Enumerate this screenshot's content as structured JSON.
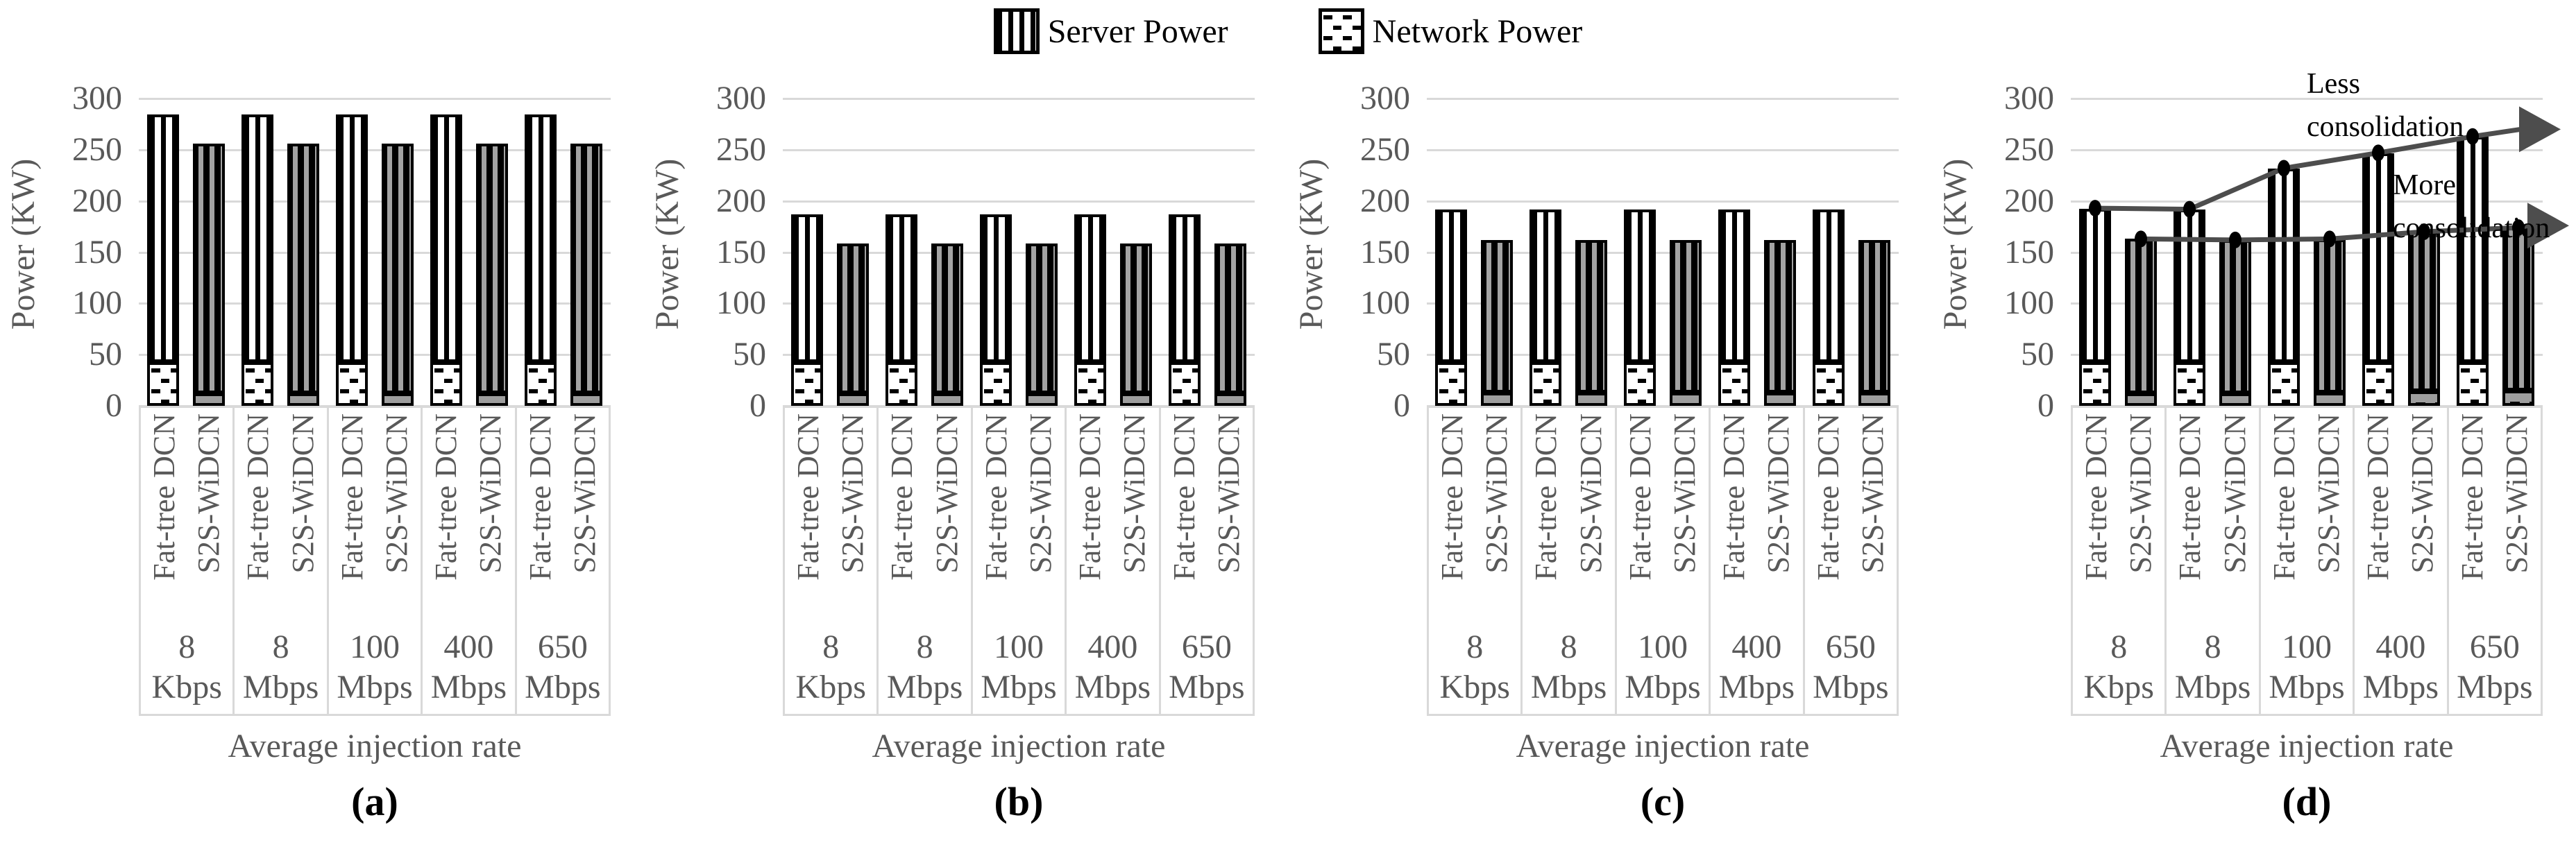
{
  "colors": {
    "grid": "#d9d9d9",
    "axis_text": "#595959",
    "bar_border": "#000000",
    "fat_tree_fill": "#ffffff",
    "fat_tree_stripe": "#000000",
    "s2s_background": "#000000",
    "s2s_stripe": "#a3a3a3",
    "s2s_network_fill": "#9e9e9e",
    "trend_line": "#4d4d4d",
    "marker": "#000000"
  },
  "legend": {
    "items": [
      {
        "label": "Server Power",
        "swatch": "server-power-pattern"
      },
      {
        "label": "Network Power",
        "swatch": "network-power-pattern"
      }
    ]
  },
  "x_axis": {
    "title": "Average injection rate",
    "categories_two_line": [
      [
        "8",
        "Kbps"
      ],
      [
        "8",
        "Mbps"
      ],
      [
        "100",
        "Mbps"
      ],
      [
        "400",
        "Mbps"
      ],
      [
        "650",
        "Mbps"
      ]
    ]
  },
  "chart_data": [
    {
      "type": "bar",
      "panel_label": "(a)",
      "stacked": true,
      "grid": true,
      "legend_entries": [
        "Server Power",
        "Network Power"
      ],
      "categories": [
        "8 Kbps",
        "8 Mbps",
        "100 Mbps",
        "400 Mbps",
        "650 Mbps"
      ],
      "ylabel": "Power (KW)",
      "xlabel": "Average injection rate",
      "ylim": [
        0,
        300
      ],
      "yticks": [
        0,
        50,
        100,
        150,
        200,
        250,
        300
      ],
      "series": [
        {
          "name": "Fat-tree DCN",
          "stack": {
            "Network Power": [
              43,
              43,
              43,
              43,
              43
            ],
            "Server Power": [
              242,
              242,
              242,
              242,
              242
            ]
          },
          "totals": [
            285,
            285,
            285,
            285,
            285
          ]
        },
        {
          "name": "S2S-WiDCN",
          "stack": {
            "Network Power": [
              12,
              12,
              12,
              12,
              12
            ],
            "Server Power": [
              244,
              244,
              244,
              244,
              244
            ]
          },
          "totals": [
            256,
            256,
            256,
            256,
            256
          ]
        }
      ]
    },
    {
      "type": "bar",
      "panel_label": "(b)",
      "stacked": true,
      "grid": true,
      "legend_entries": [
        "Server Power",
        "Network Power"
      ],
      "categories": [
        "8 Kbps",
        "8 Mbps",
        "100 Mbps",
        "400 Mbps",
        "650 Mbps"
      ],
      "ylabel": "Power (KW)",
      "xlabel": "Average injection rate",
      "ylim": [
        0,
        300
      ],
      "yticks": [
        0,
        50,
        100,
        150,
        200,
        250,
        300
      ],
      "series": [
        {
          "name": "Fat-tree DCN",
          "stack": {
            "Network Power": [
              43,
              43,
              43,
              43,
              43
            ],
            "Server Power": [
              144,
              144,
              144,
              144,
              144
            ]
          },
          "totals": [
            187,
            187,
            187,
            187,
            187
          ]
        },
        {
          "name": "S2S-WiDCN",
          "stack": {
            "Network Power": [
              12,
              12,
              12,
              12,
              12
            ],
            "Server Power": [
              146,
              146,
              146,
              146,
              146
            ]
          },
          "totals": [
            158,
            158,
            158,
            158,
            158
          ]
        }
      ]
    },
    {
      "type": "bar",
      "panel_label": "(c)",
      "stacked": true,
      "grid": true,
      "legend_entries": [
        "Server Power",
        "Network Power"
      ],
      "categories": [
        "8 Kbps",
        "8 Mbps",
        "100 Mbps",
        "400 Mbps",
        "650 Mbps"
      ],
      "ylabel": "Power (KW)",
      "xlabel": "Average injection rate",
      "ylim": [
        0,
        300
      ],
      "yticks": [
        0,
        50,
        100,
        150,
        200,
        250,
        300
      ],
      "series": [
        {
          "name": "Fat-tree DCN",
          "stack": {
            "Network Power": [
              43,
              43,
              43,
              43,
              43
            ],
            "Server Power": [
              149,
              149,
              149,
              149,
              149
            ]
          },
          "totals": [
            192,
            192,
            192,
            192,
            192
          ]
        },
        {
          "name": "S2S-WiDCN",
          "stack": {
            "Network Power": [
              13,
              13,
              13,
              13,
              13
            ],
            "Server Power": [
              149,
              149,
              149,
              149,
              149
            ]
          },
          "totals": [
            162,
            162,
            162,
            162,
            162
          ]
        }
      ]
    },
    {
      "type": "bar",
      "panel_label": "(d)",
      "stacked": true,
      "grid": true,
      "legend_entries": [
        "Server Power",
        "Network Power"
      ],
      "categories": [
        "8 Kbps",
        "8 Mbps",
        "100 Mbps",
        "400 Mbps",
        "650 Mbps"
      ],
      "ylabel": "Power (KW)",
      "xlabel": "Average injection rate",
      "ylim": [
        0,
        300
      ],
      "yticks": [
        0,
        50,
        100,
        150,
        200,
        250,
        300
      ],
      "series": [
        {
          "name": "Fat-tree DCN",
          "stack": {
            "Network Power": [
              43,
              43,
              43,
              43,
              43
            ],
            "Server Power": [
              150,
              149,
              189,
              204,
              220
            ]
          },
          "totals": [
            193,
            192,
            232,
            247,
            263
          ]
        },
        {
          "name": "S2S-WiDCN",
          "stack": {
            "Network Power": [
              12,
              12,
              13,
              14,
              15
            ],
            "Server Power": [
              151,
              150,
              150,
              156,
              159
            ]
          },
          "totals": [
            163,
            162,
            163,
            170,
            174
          ]
        }
      ],
      "annotations": [
        {
          "text": "Less consolidation",
          "target": "Fat-tree DCN"
        },
        {
          "text": "More consolidation",
          "target": "S2S-WiDCN"
        }
      ],
      "trend_lines": [
        {
          "name": "Less consolidation",
          "follows": "Fat-tree DCN",
          "values": [
            193,
            192,
            232,
            247,
            263
          ],
          "arrow_end": 270
        },
        {
          "name": "More consolidation",
          "follows": "S2S-WiDCN",
          "values": [
            163,
            162,
            163,
            170,
            174
          ],
          "arrow_end": 176
        }
      ]
    }
  ]
}
